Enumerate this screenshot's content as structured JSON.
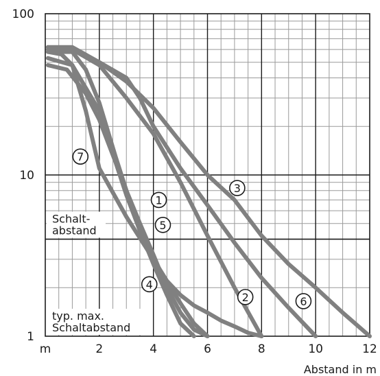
{
  "chart_data": {
    "type": "line",
    "xlabel": "Abstand in m",
    "ylabel": "",
    "x_ticks": [
      "m",
      "2",
      "4",
      "6",
      "8",
      "10",
      "12"
    ],
    "y_ticks": [
      "100",
      "10",
      "1"
    ],
    "xlim": [
      0,
      12
    ],
    "ylim": [
      1,
      100
    ],
    "y_scale": "log",
    "grid": true,
    "annotations": {
      "schaltabstand": "Schalt-\nabstand",
      "schaltabstand_line1": "Schalt-",
      "schaltabstand_line2": "abstand",
      "typ_line1": "typ. max.",
      "typ_line2": "Schaltabstand",
      "schaltabstand_level": 4
    },
    "series": [
      {
        "name": "①",
        "x": [
          0.1,
          1.0,
          1.5,
          2.0,
          2.6,
          3.0,
          3.5,
          4.0,
          4.5,
          5.0,
          5.5,
          6.0
        ],
        "y": [
          58,
          58,
          45,
          28,
          13,
          8,
          5,
          3.2,
          2.0,
          1.4,
          1.1,
          1.0
        ]
      },
      {
        "name": "②",
        "x": [
          0.1,
          1.0,
          2.0,
          3.0,
          4.0,
          5.0,
          6.0,
          7.0,
          8.0
        ],
        "y": [
          62,
          60,
          48,
          30,
          18,
          9,
          4.2,
          2.0,
          1.0
        ]
      },
      {
        "name": "③",
        "x": [
          0.1,
          1.0,
          2.0,
          3.0,
          4.0,
          5.0,
          6.0,
          7.0,
          8.0,
          9.0,
          10.0,
          11.0,
          12.0
        ],
        "y": [
          60,
          60,
          50,
          38,
          26,
          16,
          10,
          7,
          4.2,
          2.8,
          2.0,
          1.4,
          1.0
        ]
      },
      {
        "name": "④",
        "x": [
          0.1,
          0.8,
          1.5,
          2.0,
          2.6,
          3.0,
          3.5,
          4.0,
          4.5,
          5.0,
          5.5,
          6.0,
          6.5,
          7.0,
          7.5,
          8.0
        ],
        "y": [
          48,
          45,
          32,
          22,
          12,
          7.5,
          4.5,
          3.0,
          2.2,
          1.8,
          1.55,
          1.4,
          1.25,
          1.15,
          1.05,
          1.0
        ]
      },
      {
        "name": "⑤",
        "x": [
          0.1,
          1.0,
          2.0,
          3.0,
          3.5,
          4.0,
          4.5,
          5.0,
          5.5
        ],
        "y": [
          53,
          48,
          25,
          8,
          4.5,
          2.8,
          1.8,
          1.2,
          1.0
        ]
      },
      {
        "name": "⑥",
        "x": [
          0.1,
          1.0,
          2.0,
          3.0,
          3.5,
          4.0,
          5.0,
          6.0,
          7.0,
          8.0,
          9.0,
          10.0
        ],
        "y": [
          62,
          62,
          50,
          40,
          30,
          20,
          11,
          6.5,
          3.8,
          2.3,
          1.5,
          1.0
        ]
      },
      {
        "name": "⑦",
        "x": [
          0.1,
          0.6,
          1.0,
          1.5,
          2.0,
          3.0,
          4.0,
          5.0,
          5.5,
          6.0
        ],
        "y": [
          58,
          56,
          48,
          25,
          11,
          5.5,
          3.0,
          1.6,
          1.2,
          1.0
        ]
      }
    ],
    "label_positions": [
      {
        "name": "①",
        "x": 4.2,
        "y": 7.0
      },
      {
        "name": "②",
        "x": 7.4,
        "y": 1.75
      },
      {
        "name": "③",
        "x": 7.1,
        "y": 8.3
      },
      {
        "name": "④",
        "x": 3.85,
        "y": 2.1
      },
      {
        "name": "⑤",
        "x": 4.35,
        "y": 4.9
      },
      {
        "name": "⑥",
        "x": 9.55,
        "y": 1.65
      },
      {
        "name": "⑦",
        "x": 1.3,
        "y": 13.0
      }
    ]
  }
}
